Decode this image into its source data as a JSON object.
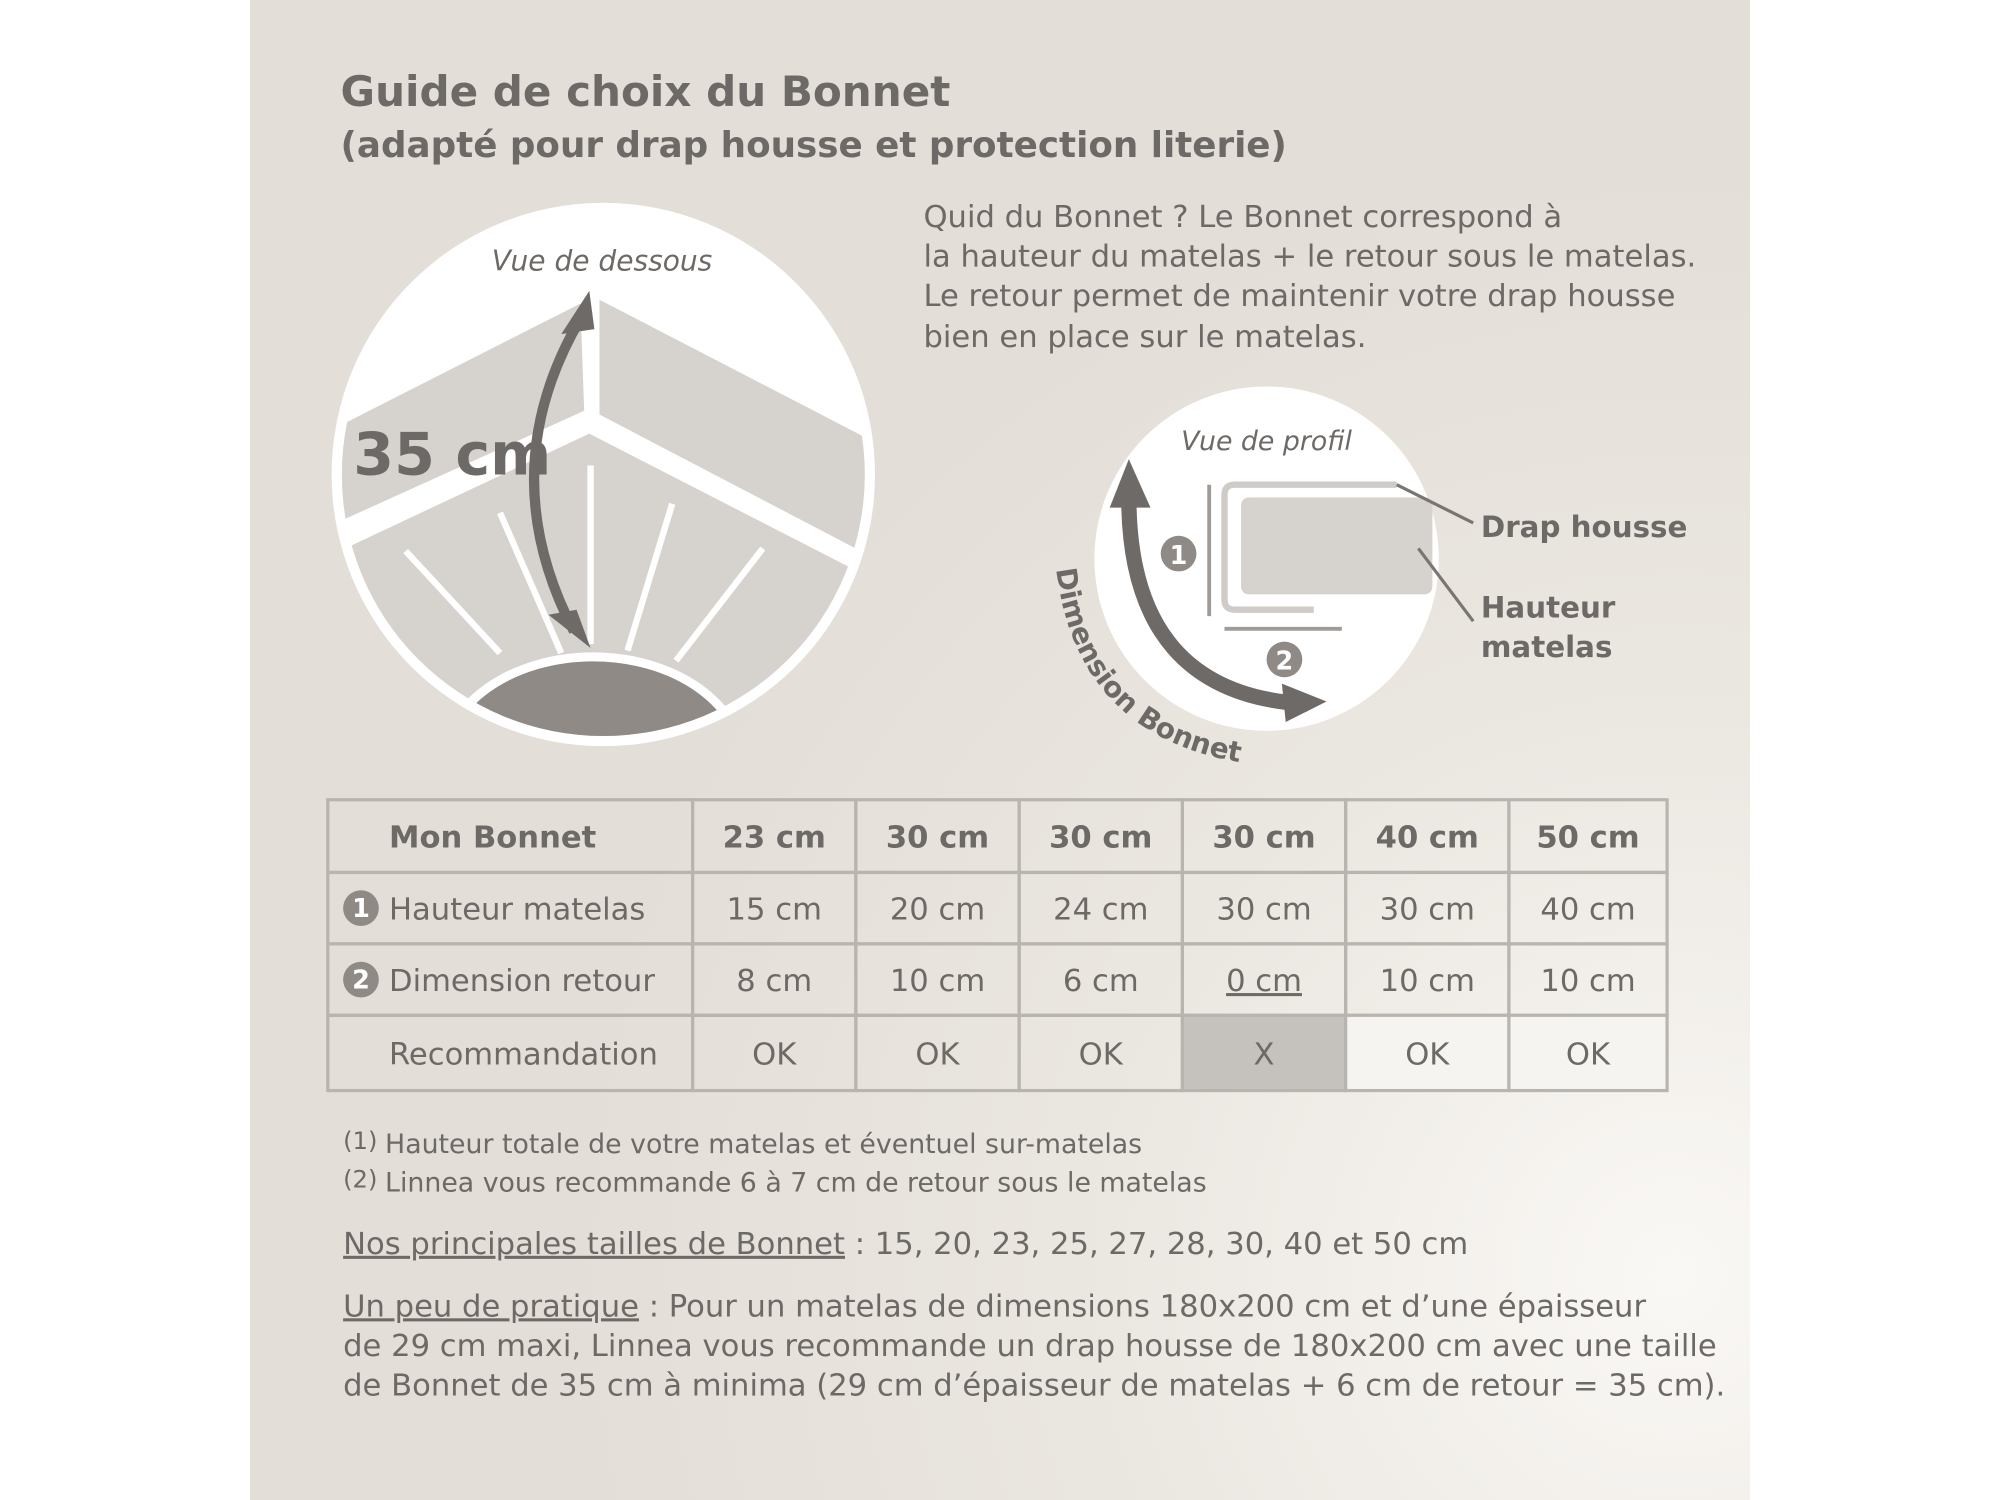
{
  "header": {
    "title": "Guide de choix du Bonnet",
    "subtitle": "(adapté pour drap housse et protection literie)"
  },
  "illustration_bottom": {
    "label": "Vue de dessous",
    "measure": "35 cm"
  },
  "description": {
    "lines": [
      "Quid du Bonnet ? Le Bonnet correspond à",
      "la hauteur du matelas + le retour sous le matelas.",
      "Le retour permet de maintenir votre drap housse",
      "bien en place sur le matelas."
    ]
  },
  "illustration_profile": {
    "label": "Vue de profil",
    "marker_1": "1",
    "marker_2": "2",
    "drap": "Drap housse",
    "hauteur": [
      "Hauteur",
      "matelas"
    ],
    "arrow_label": "Dimension Bonnet"
  },
  "table": {
    "header": [
      "Mon Bonnet",
      "23 cm",
      "30 cm",
      "30 cm",
      "30 cm",
      "40 cm",
      "50 cm"
    ],
    "rows": [
      {
        "marker": "1",
        "cells": [
          "Hauteur matelas",
          "15 cm",
          "20 cm",
          "24 cm",
          "30 cm",
          "30 cm",
          "40 cm"
        ]
      },
      {
        "marker": "2",
        "cells": [
          "Dimension retour",
          "8 cm",
          "10 cm",
          "6 cm",
          "0 cm",
          "10 cm",
          "10 cm"
        ]
      },
      {
        "cells": [
          "Recommandation",
          "OK",
          "OK",
          "OK",
          "X",
          "OK",
          "OK"
        ]
      }
    ]
  },
  "notes": [
    {
      "mark": "(1)",
      "text": "Hauteur totale de votre matelas et éventuel sur-matelas"
    },
    {
      "mark": "(2)",
      "text": "Linnea vous recommande 6 à 7 cm de retour sous le matelas"
    }
  ],
  "sizes": {
    "label": "Nos principales tailles de Bonnet",
    "text": " : 15, 20, 23, 25, 27, 28, 30, 40 et 50 cm"
  },
  "practice": {
    "label": "Un peu de pratique",
    "lines": [
      " : Pour un matelas de dimensions 180x200 cm et d’une épaisseur",
      "de 29 cm maxi, Linnea vous recommande un drap housse de 180x200 cm avec une taille",
      "de Bonnet de 35 cm à minima (29 cm d’épaisseur de matelas + 6 cm de retour = 35 cm)."
    ]
  }
}
